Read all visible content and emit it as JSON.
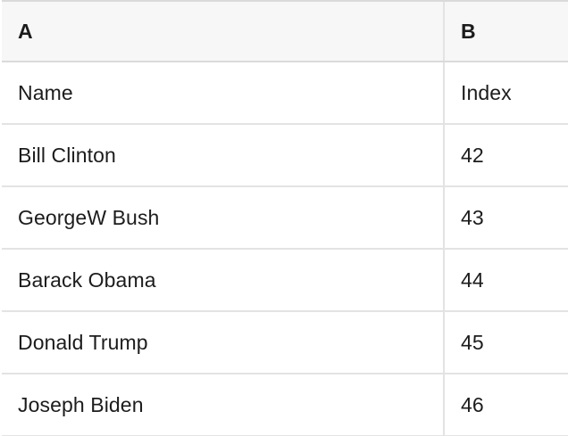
{
  "table": {
    "column_headers": [
      "A",
      "B"
    ],
    "rows": [
      {
        "cells": [
          "Name",
          "Index"
        ]
      },
      {
        "cells": [
          "Bill Clinton",
          "42"
        ]
      },
      {
        "cells": [
          "GeorgeW Bush",
          "43"
        ]
      },
      {
        "cells": [
          "Barack Obama",
          "44"
        ]
      },
      {
        "cells": [
          "Donald Trump",
          "45"
        ]
      },
      {
        "cells": [
          "Joseph Biden",
          "46"
        ]
      }
    ],
    "colors": {
      "header_background": "#f7f7f7",
      "grid_line": "#e3e3e3",
      "header_border": "#dadada",
      "text": "#1c1c1c"
    }
  }
}
